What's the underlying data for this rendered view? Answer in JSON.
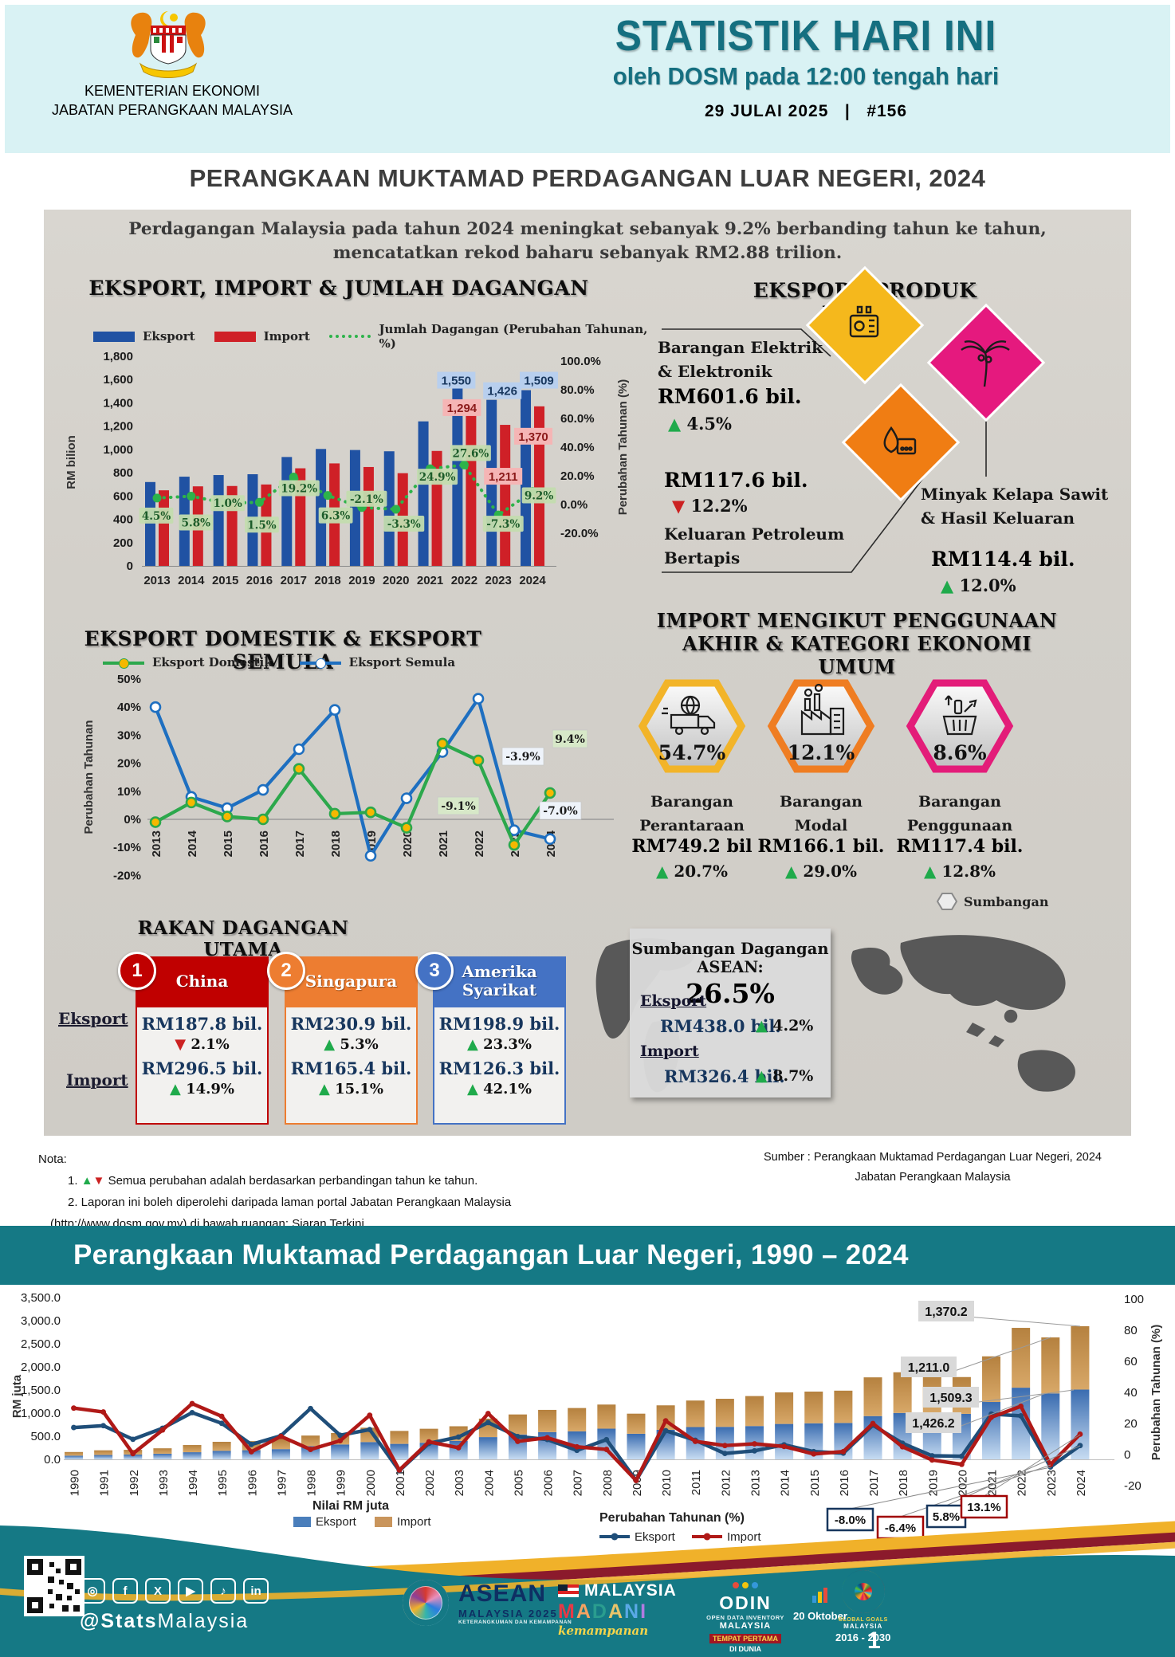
{
  "header": {
    "ministry_line1": "KEMENTERIAN EKONOMI",
    "ministry_line2": "JABATAN PERANGKAAN MALAYSIA",
    "title": "STATISTIK HARI INI",
    "subtitle": "oleh DOSM pada 12:00 tengah hari",
    "date": "29 JULAI 2025",
    "separator": "|",
    "issue": "#156"
  },
  "page_title": "PERANGKAAN MUKTAMAD PERDAGANGAN LUAR NEGERI, 2024",
  "intro": {
    "line1": "Perdagangan Malaysia pada tahun 2024 meningkat sebanyak 9.2% berbanding tahun ke tahun,",
    "line2": "mencatatkan rekod baharu sebanyak RM2.88 trilion."
  },
  "eksport_produk": {
    "title": "EKSPORT PRODUK UTAMA",
    "items": [
      {
        "label_line1": "Barangan Elektrik",
        "label_line2": "& Elektronik",
        "value": "RM601.6 bil.",
        "change": "4.5%",
        "direction": "up"
      },
      {
        "label_line1": "Keluaran Petroleum",
        "label_line2": "Bertapis",
        "value": "RM117.6 bil.",
        "change": "12.2%",
        "direction": "down"
      },
      {
        "label_line1": "Minyak Kelapa Sawit",
        "label_line2": "& Hasil Keluaran",
        "value": "RM114.4 bil.",
        "change": "12.0%",
        "direction": "up"
      }
    ]
  },
  "import_kategori": {
    "title_line1": "IMPORT MENGIKUT PENGGUNAAN",
    "title_line2": "AKHIR & KATEGORI EKONOMI UMUM",
    "items": [
      {
        "share": "54.7%",
        "label_line1": "Barangan",
        "label_line2": "Perantaraan",
        "value": "RM749.2 bil",
        "change": "20.7%",
        "direction": "up",
        "accent": "#f2b429"
      },
      {
        "share": "12.1%",
        "label_line1": "Barangan",
        "label_line2": "Modal",
        "value": "RM166.1 bil.",
        "change": "29.0%",
        "direction": "up",
        "accent": "#ef7d22"
      },
      {
        "share": "8.6%",
        "label_line1": "Barangan",
        "label_line2": "Penggunaan",
        "value": "RM117.4 bil.",
        "change": "12.8%",
        "direction": "up",
        "accent": "#e31c79"
      }
    ],
    "legend_note": "Sumbangan"
  },
  "rakan": {
    "title": "RAKAN DAGANGAN UTAMA",
    "row_label_eksport": "Eksport",
    "row_label_import": "Import",
    "partners": [
      {
        "rank": "1",
        "name": "China",
        "color": "#c00000",
        "eksport_value": "RM187.8 bil.",
        "eksport_change": "2.1%",
        "eksport_direction": "down",
        "import_value": "RM296.5 bil.",
        "import_change": "14.9%",
        "import_direction": "up"
      },
      {
        "rank": "2",
        "name": "Singapura",
        "color": "#ed7d31",
        "eksport_value": "RM230.9 bil.",
        "eksport_change": "5.3%",
        "eksport_direction": "up",
        "import_value": "RM165.4 bil.",
        "import_change": "15.1%",
        "import_direction": "up"
      },
      {
        "rank": "3",
        "name": "Amerika Syarikat",
        "color": "#4472c4",
        "eksport_value": "RM198.9 bil.",
        "eksport_change": "23.3%",
        "eksport_direction": "up",
        "import_value": "RM126.3 bil.",
        "import_change": "42.1%",
        "import_direction": "up"
      }
    ]
  },
  "asean": {
    "title": "Sumbangan Dagangan ASEAN:",
    "share": "26.5%",
    "eksport_label": "Eksport",
    "eksport_value": "RM438.0 bil.",
    "eksport_change": "4.2%",
    "import_label": "Import",
    "import_value": "RM326.4 bil.",
    "import_change": "8.7%"
  },
  "nota": {
    "heading": "Nota:",
    "item1_prefix": "1.",
    "item1": "Semua perubahan adalah berdasarkan perbandingan tahun ke tahun.",
    "item2": "2. Laporan ini boleh diperolehi daripada laman portal Jabatan Perangkaan Malaysia",
    "item3": "(http://www.dosm.gov.my) di bawah ruangan: Siaran Terkini."
  },
  "sumber": {
    "line1": "Sumber : Perangkaan Muktamad Perdagangan Luar Negeri, 2024",
    "line2": "Jabatan Perangkaan Malaysia"
  },
  "banner_title": "Perangkaan Muktamad Perdagangan Luar Negeri, 1990 – 2024",
  "chart_data": [
    {
      "id": "eksport-import-jumlah-dagangan",
      "type": "bar",
      "title": "EKSPORT, IMPORT & JUMLAH DAGANGAN",
      "categories": [
        "2013",
        "2014",
        "2015",
        "2016",
        "2017",
        "2018",
        "2019",
        "2020",
        "2021",
        "2022",
        "2023",
        "2024"
      ],
      "series": [
        {
          "name": "Eksport",
          "color": "#2052a3",
          "values": [
            720,
            766,
            780,
            787,
            935,
            1004,
            995,
            984,
            1241,
            1550,
            1426,
            1509
          ]
        },
        {
          "name": "Import",
          "color": "#cf2027",
          "values": [
            649,
            683,
            686,
            699,
            838,
            880,
            849,
            796,
            987,
            1294,
            1211,
            1370
          ]
        }
      ],
      "line_series": {
        "name": "Jumlah Dagangan (Perubahan Tahunan, %)",
        "color": "#2db34a",
        "values": [
          4.5,
          5.8,
          1.0,
          1.5,
          19.2,
          6.3,
          -2.1,
          -3.3,
          24.9,
          27.6,
          -7.3,
          9.2
        ]
      },
      "point_labels": [
        "4.5%",
        "5.8%",
        "1.0%",
        "1.5%",
        "19.2%",
        "6.3%",
        "-2.1%",
        "-3.3%",
        "24.9%",
        "27.6%",
        "-7.3%",
        "9.2%"
      ],
      "value_labels": [
        {
          "year": "2022",
          "eksport": "1,550",
          "import": "1,294"
        },
        {
          "year": "2023",
          "eksport": "1,426",
          "import": "1,211"
        },
        {
          "year": "2024",
          "eksport": "1,509",
          "import": "1,370"
        }
      ],
      "ylabel": "RM bilion",
      "y2label": "Perubahan Tahunan (%)",
      "ylim": [
        0,
        1800
      ],
      "y2lim": [
        -20,
        100
      ],
      "yticks": [
        "1,800",
        "1,600",
        "1,400",
        "1,200",
        "1,000",
        "800",
        "600",
        "400",
        "200",
        "0"
      ],
      "y2ticks": [
        "100.0%",
        "80.0%",
        "60.0%",
        "40.0%",
        "20.0%",
        "0.0%",
        "-20.0%"
      ]
    },
    {
      "id": "eksport-domestik-eksport-semula",
      "type": "line",
      "title": "EKSPORT DOMESTIK & EKSPORT SEMULA",
      "categories": [
        "2013",
        "2014",
        "2015",
        "2016",
        "2017",
        "2018",
        "2019",
        "2020",
        "2021",
        "2022",
        "2023",
        "2024"
      ],
      "series": [
        {
          "name": "Eksport Domestik",
          "color": "#2ca84c",
          "marker": "#f5b800",
          "values": [
            -1,
            6,
            1,
            0,
            18,
            2,
            2.5,
            -3,
            27,
            21,
            -9.1,
            9.4
          ]
        },
        {
          "name": "Eksport Semula",
          "color": "#1e6fc0",
          "marker": "#ffffff",
          "values": [
            40,
            8,
            4,
            10.5,
            25,
            39,
            -13,
            7.5,
            24,
            43,
            -3.9,
            -7.0
          ]
        }
      ],
      "point_labels": [
        {
          "series": "Eksport Domestik",
          "year": "2023",
          "text": "-9.1%"
        },
        {
          "series": "Eksport Semula",
          "year": "2023",
          "text": "-3.9%"
        },
        {
          "series": "Eksport Domestik",
          "year": "2024",
          "text": "9.4%"
        },
        {
          "series": "Eksport Semula",
          "year": "2024",
          "text": "-7.0%"
        }
      ],
      "ylabel": "Perubahan Tahunan",
      "ylim": [
        -20,
        50
      ],
      "yticks": [
        "50%",
        "40%",
        "30%",
        "20%",
        "10%",
        "0%",
        "-10%",
        "-20%"
      ]
    },
    {
      "id": "perdagangan-1990-2024",
      "type": "stacked-bar-line",
      "categories": [
        "1990",
        "1991",
        "1992",
        "1993",
        "1994",
        "1995",
        "1996",
        "1997",
        "1998",
        "1999",
        "2000",
        "2001",
        "2002",
        "2003",
        "2004",
        "2005",
        "2006",
        "2007",
        "2008",
        "2009",
        "2010",
        "2011",
        "2012",
        "2013",
        "2014",
        "2015",
        "2016",
        "2017",
        "2018",
        "2019",
        "2020",
        "2021",
        "2022",
        "2023",
        "2024"
      ],
      "bar_series": [
        {
          "name": "Eksport",
          "color": "#4a7ebb",
          "values": [
            79.6,
            94.4,
            103.7,
            121.2,
            153.9,
            184.9,
            197.0,
            220.9,
            286.2,
            321.6,
            373.3,
            334.4,
            358.5,
            398.9,
            481.2,
            536.9,
            589.2,
            605.2,
            663.5,
            553.3,
            638.8,
            697.9,
            702.6,
            719.8,
            765.4,
            779.9,
            787.0,
            935.4,
            1003.6,
            995.1,
            983.8,
            1241.0,
            1550.1,
            1426.2,
            1509.3
          ]
        },
        {
          "name": "Import",
          "color": "#c9955c",
          "values": [
            79.1,
            100.8,
            101.4,
            117.4,
            155.9,
            194.3,
            197.8,
            220.9,
            228.1,
            248.5,
            311.5,
            280.2,
            303.1,
            316.5,
            400.1,
            434.0,
            480.8,
            504.8,
            521.6,
            434.7,
            529.2,
            574.2,
            607.4,
            649.2,
            683.0,
            685.8,
            698.7,
            838.1,
            879.8,
            849.4,
            796.2,
            987.1,
            1294.0,
            1211.0,
            1370.2
          ]
        }
      ],
      "line_series": [
        {
          "name": "Eksport",
          "color": "#1f4e79",
          "values": [
            17.4,
            18.6,
            9.8,
            16.9,
            27.0,
            20.1,
            6.5,
            12.1,
            29.6,
            12.4,
            16.1,
            -10.4,
            7.2,
            11.3,
            20.6,
            11.6,
            9.7,
            2.7,
            9.6,
            -16.6,
            15.4,
            9.2,
            0.7,
            2.4,
            6.3,
            1.9,
            0.9,
            18.9,
            7.3,
            -0.8,
            -1.1,
            26.1,
            24.9,
            -8.0,
            5.8
          ]
        },
        {
          "name": "Import",
          "color": "#b01917",
          "values": [
            29.9,
            27.4,
            0.6,
            15.8,
            32.8,
            24.6,
            1.8,
            11.7,
            3.3,
            8.9,
            25.3,
            -10.0,
            8.2,
            4.4,
            26.4,
            8.5,
            10.8,
            5.0,
            3.3,
            -16.7,
            21.7,
            8.5,
            5.8,
            6.9,
            5.2,
            0.4,
            1.9,
            20.0,
            5.0,
            -3.5,
            -6.3,
            24.0,
            31.1,
            -6.4,
            13.1
          ]
        }
      ],
      "bar_labels": [
        "1,370.2",
        "1,211.0",
        "1,509.3",
        "1,426.2"
      ],
      "line_labels": [
        "-8.0%",
        "-6.4%",
        "5.8%",
        "13.1%"
      ],
      "ylabel": "RM juta",
      "y2label": "Perubahan Tahunan (%)",
      "ylim": [
        0,
        3500
      ],
      "y2lim": [
        -20,
        100
      ],
      "yticks": [
        "3,500.0",
        "3,000.0",
        "2,500.0",
        "2,000.0",
        "1,500.0",
        "1,000.0",
        "500.0",
        "0.0"
      ],
      "y2ticks": [
        "100",
        "80",
        "60",
        "40",
        "20",
        "0",
        "-20"
      ],
      "legend": {
        "values_header": "Nilai RM juta",
        "change_header": "Perubahan Tahunan (%)",
        "eksport": "Eksport",
        "import": "Import"
      }
    }
  ],
  "footer": {
    "handle_bold": "@Stats",
    "handle_light": "Malaysia",
    "asean_line1": "ASEAN",
    "asean_line2": "MALAYSIA 2025",
    "asean_line3": "KETERANGKUMAN DAN KEMAMPANAN",
    "madani_line1": "MALAYSIA",
    "madani_line2": "MADANI",
    "madani_script": "kemampanan",
    "odin_name": "ODIN",
    "odin_line1": "OPEN DATA INVENTORY",
    "odin_line2": "MALAYSIA",
    "odin_line3": "TEMPAT PERTAMA",
    "odin_line4": "DI DUNIA",
    "odin_date": "20 Oktober",
    "sdg_line1": "GLOBAL GOALS",
    "sdg_line2": "MALAYSIA",
    "sdg_years": "2016 - 2030",
    "page_number": "1"
  }
}
